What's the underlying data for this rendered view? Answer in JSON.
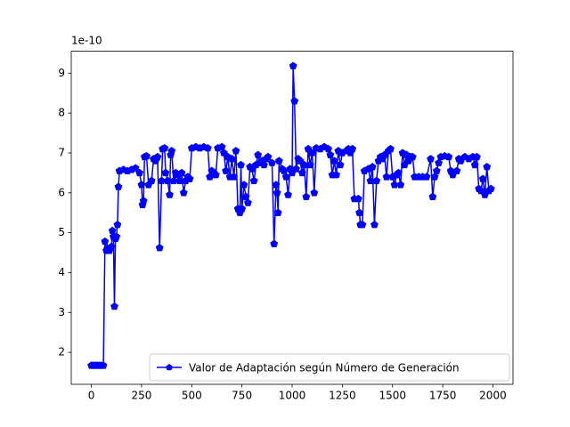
{
  "chart_data": {
    "type": "line",
    "offset_text": "1e-10",
    "x": [
      0,
      10,
      20,
      30,
      40,
      50,
      60,
      68,
      75,
      80,
      90,
      100,
      105,
      110,
      115,
      120,
      125,
      130,
      135,
      140,
      160,
      180,
      200,
      220,
      240,
      250,
      255,
      260,
      265,
      275,
      285,
      300,
      310,
      320,
      330,
      340,
      350,
      355,
      365,
      370,
      380,
      390,
      395,
      400,
      410,
      420,
      430,
      440,
      450,
      460,
      470,
      480,
      490,
      500,
      520,
      540,
      560,
      580,
      590,
      600,
      610,
      620,
      630,
      650,
      660,
      670,
      680,
      690,
      700,
      710,
      720,
      730,
      740,
      745,
      750,
      760,
      770,
      780,
      790,
      800,
      810,
      820,
      830,
      840,
      850,
      860,
      870,
      880,
      900,
      910,
      920,
      925,
      930,
      935,
      950,
      960,
      970,
      980,
      990,
      1000,
      1005,
      1012,
      1020,
      1030,
      1040,
      1050,
      1060,
      1070,
      1080,
      1090,
      1100,
      1110,
      1120,
      1140,
      1160,
      1180,
      1190,
      1200,
      1210,
      1220,
      1230,
      1240,
      1250,
      1270,
      1280,
      1290,
      1300,
      1310,
      1330,
      1335,
      1340,
      1350,
      1360,
      1380,
      1390,
      1400,
      1410,
      1420,
      1430,
      1440,
      1450,
      1460,
      1470,
      1480,
      1490,
      1500,
      1510,
      1520,
      1530,
      1540,
      1550,
      1560,
      1570,
      1580,
      1590,
      1600,
      1610,
      1630,
      1650,
      1670,
      1690,
      1700,
      1710,
      1720,
      1730,
      1740,
      1760,
      1780,
      1790,
      1800,
      1820,
      1830,
      1840,
      1860,
      1880,
      1900,
      1910,
      1920,
      1930,
      1940,
      1950,
      1960,
      1970,
      1980,
      1990
    ],
    "series": [
      {
        "name": "Valor de Adaptación según Número de Generación",
        "color": "#0000ff",
        "values": [
          1.67,
          1.67,
          1.67,
          1.67,
          1.67,
          1.67,
          1.67,
          4.78,
          4.55,
          4.6,
          4.55,
          4.65,
          5.05,
          4.9,
          3.15,
          4.85,
          4.9,
          5.2,
          6.15,
          6.55,
          6.58,
          6.55,
          6.58,
          6.62,
          6.5,
          6.2,
          5.7,
          5.8,
          6.9,
          6.92,
          6.2,
          6.3,
          6.85,
          6.8,
          6.9,
          4.62,
          6.3,
          7.1,
          7.12,
          6.5,
          6.3,
          5.95,
          6.95,
          7.05,
          6.3,
          6.5,
          6.45,
          6.3,
          6.5,
          6.0,
          6.3,
          6.4,
          6.35,
          7.12,
          7.15,
          7.12,
          7.15,
          7.12,
          6.4,
          6.55,
          6.5,
          6.45,
          7.12,
          7.15,
          7.0,
          6.55,
          6.9,
          6.4,
          6.85,
          6.4,
          7.05,
          5.6,
          5.5,
          6.7,
          5.6,
          6.2,
          5.9,
          5.75,
          6.65,
          6.6,
          6.3,
          6.7,
          6.95,
          6.75,
          6.8,
          6.7,
          6.85,
          6.9,
          6.75,
          4.72,
          6.2,
          6.0,
          5.5,
          6.8,
          6.6,
          6.55,
          6.4,
          5.95,
          6.6,
          6.5,
          9.18,
          8.3,
          6.6,
          6.85,
          6.8,
          6.5,
          6.7,
          5.9,
          7.1,
          6.7,
          7.0,
          6.0,
          7.12,
          7.1,
          7.15,
          7.1,
          6.95,
          6.45,
          6.8,
          6.45,
          7.05,
          6.7,
          7.0,
          7.05,
          7.1,
          7.0,
          7.1,
          5.85,
          5.85,
          5.5,
          5.2,
          5.2,
          6.55,
          6.6,
          6.3,
          6.65,
          5.2,
          6.3,
          6.8,
          6.9,
          6.85,
          6.95,
          6.4,
          7.05,
          7.1,
          6.4,
          6.2,
          6.45,
          6.5,
          6.2,
          7.0,
          6.7,
          6.95,
          6.8,
          6.9,
          6.9,
          6.4,
          6.4,
          6.4,
          6.4,
          6.85,
          5.9,
          6.4,
          6.55,
          6.75,
          6.9,
          6.92,
          6.9,
          6.55,
          6.45,
          6.55,
          6.85,
          6.8,
          6.9,
          6.85,
          6.9,
          6.7,
          6.9,
          6.1,
          6.05,
          6.35,
          5.95,
          6.65,
          6.05,
          6.1
        ]
      }
    ],
    "xlim": [
      -100,
      2100
    ],
    "ylim": [
      1.2,
      9.55
    ],
    "xticks": [
      0,
      250,
      500,
      750,
      1000,
      1250,
      1500,
      1750,
      2000
    ],
    "yticks": [
      2,
      3,
      4,
      5,
      6,
      7,
      8,
      9
    ],
    "legend": "lower right"
  }
}
